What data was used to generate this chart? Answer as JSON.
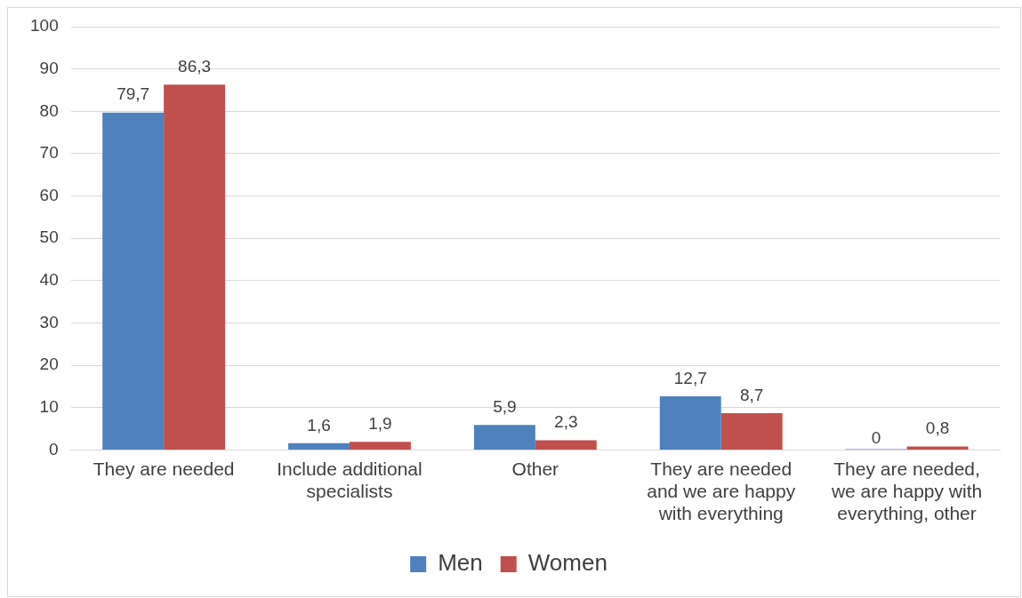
{
  "chart_data": {
    "type": "bar",
    "categories": [
      "They are needed",
      "Include additional specialists",
      "Other",
      "They are needed and we are happy with everything",
      "They are needed, we are happy with everything, other"
    ],
    "series": [
      {
        "name": "Men",
        "color": "#4f81bd",
        "values": [
          79.7,
          1.6,
          5.9,
          12.7,
          0
        ],
        "value_labels": [
          "79,7",
          "1,6",
          "5,9",
          "12,7",
          "0"
        ]
      },
      {
        "name": "Women",
        "color": "#c0504d",
        "values": [
          86.3,
          1.9,
          2.3,
          8.7,
          0.8
        ],
        "value_labels": [
          "86,3",
          "1,9",
          "2,3",
          "8,7",
          "0,8"
        ]
      }
    ],
    "ylim": [
      0,
      100
    ],
    "yticks": [
      0,
      10,
      20,
      30,
      40,
      50,
      60,
      70,
      80,
      90,
      100
    ],
    "grid": "y",
    "legend": "bottom"
  }
}
